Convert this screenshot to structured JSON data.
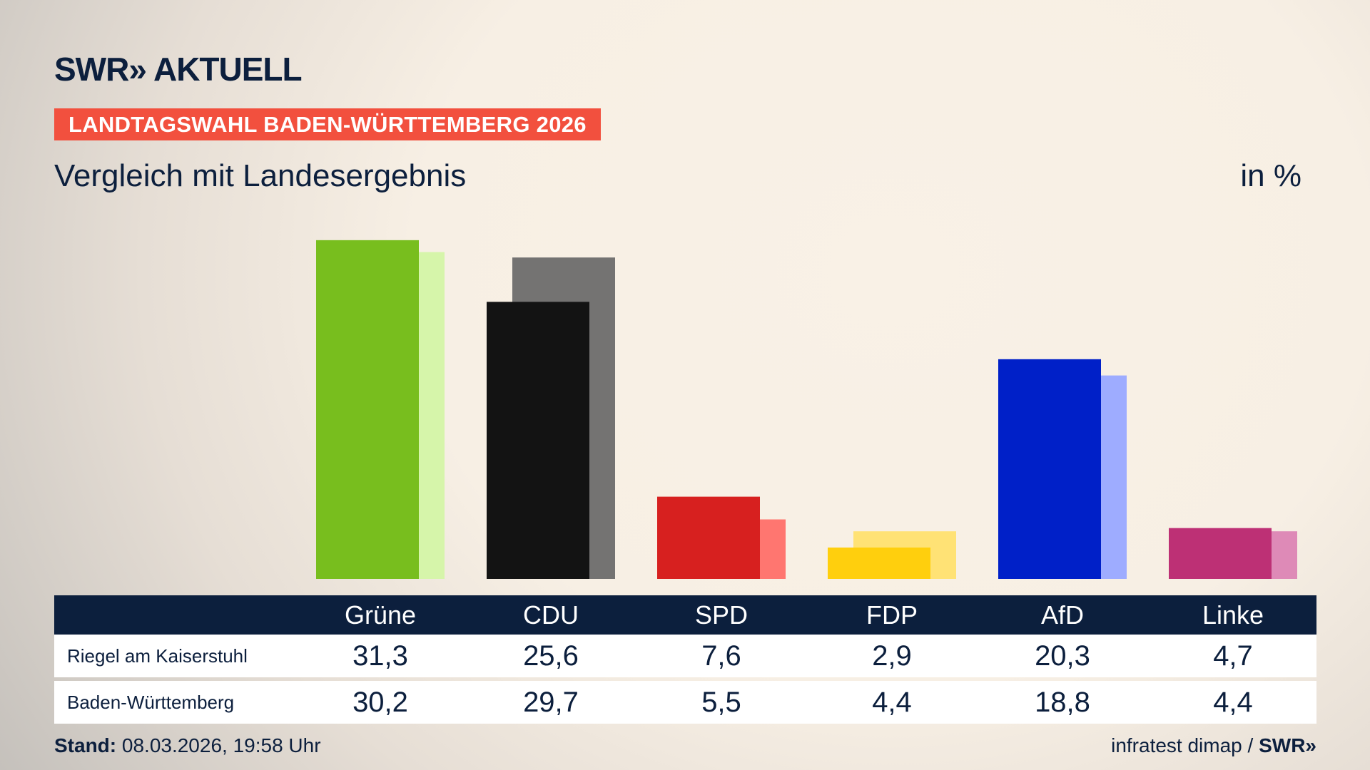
{
  "header": {
    "logo": "SWR» AKTUELL",
    "banner": "LANDTAGSWAHL BADEN-WÜRTTEMBERG 2026",
    "subtitle": "Vergleich mit Landesergebnis",
    "unit": "in %"
  },
  "chart_data": {
    "type": "bar",
    "categories": [
      "Grüne",
      "CDU",
      "SPD",
      "FDP",
      "AfD",
      "Linke"
    ],
    "series": [
      {
        "name": "Riegel am Kaiserstuhl",
        "values": [
          31.3,
          25.6,
          7.6,
          2.9,
          20.3,
          4.7
        ],
        "display": [
          "31,3",
          "25,6",
          "7,6",
          "2,9",
          "20,3",
          "4,7"
        ]
      },
      {
        "name": "Baden-Württemberg",
        "values": [
          30.2,
          29.7,
          5.5,
          4.4,
          18.8,
          4.4
        ],
        "display": [
          "30,2",
          "29,7",
          "5,5",
          "4,4",
          "18,8",
          "4,4"
        ]
      }
    ],
    "colors": {
      "primary": [
        "#78be1e",
        "#131313",
        "#d7201f",
        "#ffcf0d",
        "#0020c8",
        "#bd3075"
      ],
      "secondary": [
        "#d6f5aa",
        "#747372",
        "#ff7670",
        "#ffe275",
        "#9eacff",
        "#de8ab7"
      ]
    },
    "ylim": [
      0,
      35
    ],
    "grid": false
  },
  "footer": {
    "stand_label": "Stand:",
    "stand_value": "08.03.2026, 19:58 Uhr",
    "source": "infratest dimap /",
    "source_logo": "SWR»"
  }
}
